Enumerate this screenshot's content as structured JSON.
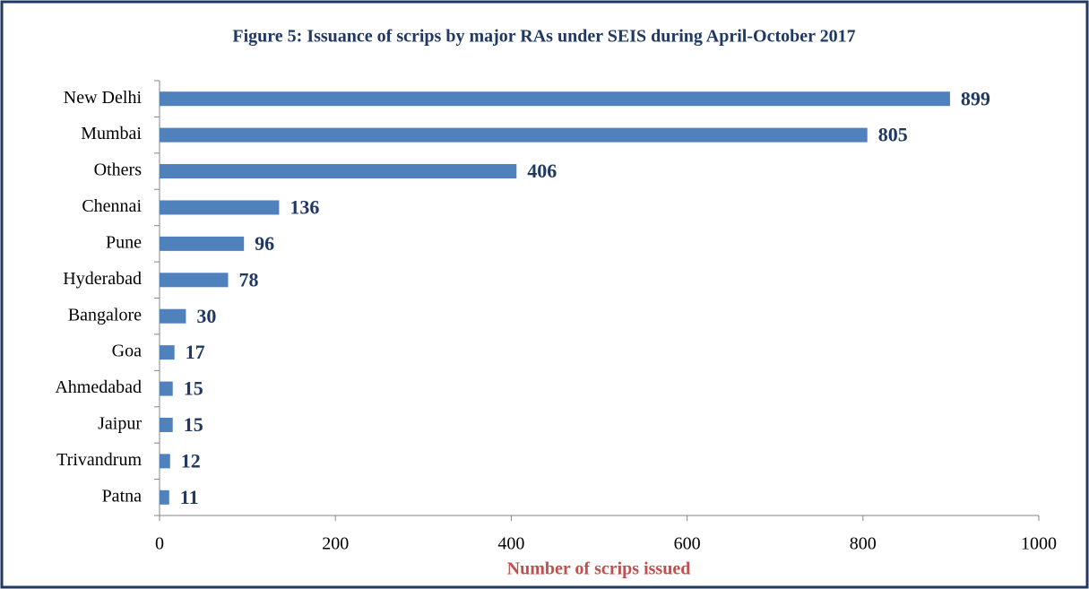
{
  "chart_data": {
    "type": "bar",
    "orientation": "horizontal",
    "title": "Figure 5: Issuance of scrips by major RAs under SEIS during April-October 2017",
    "x_label": "Number of scrips issued",
    "categories": [
      "New Delhi",
      "Mumbai",
      "Others",
      "Chennai",
      "Pune",
      "Hyderabad",
      "Bangalore",
      "Goa",
      "Ahmedabad",
      "Jaipur",
      "Trivandrum",
      "Patna"
    ],
    "values": [
      899,
      805,
      406,
      136,
      96,
      78,
      30,
      17,
      15,
      15,
      12,
      11
    ],
    "color": "#4f81bd",
    "xlim": [
      0,
      1000
    ],
    "xticks": [
      0,
      200,
      400,
      600,
      800,
      1000
    ],
    "grid": false
  }
}
